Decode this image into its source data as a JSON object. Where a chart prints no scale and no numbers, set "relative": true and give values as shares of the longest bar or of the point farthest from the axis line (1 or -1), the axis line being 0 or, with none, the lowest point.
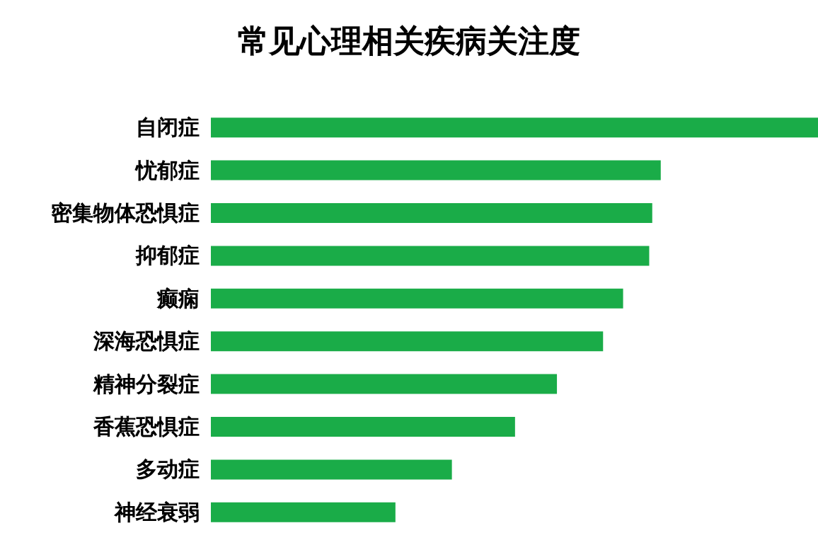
{
  "chart_data": {
    "type": "bar",
    "title": "常见心理相关疾病关注度",
    "orientation": "horizontal",
    "relative": true,
    "categories": [
      "自闭症",
      "忧郁症",
      "密集物体恐惧症",
      "抑郁症",
      "癫痫",
      "深海恐惧症",
      "精神分裂症",
      "香蕉恐惧症",
      "多动症",
      "神经衰弱"
    ],
    "values": [
      1,
      0.741,
      0.727,
      0.722,
      0.679,
      0.646,
      0.57,
      0.501,
      0.397,
      0.304
    ],
    "color": "#1aac48"
  }
}
